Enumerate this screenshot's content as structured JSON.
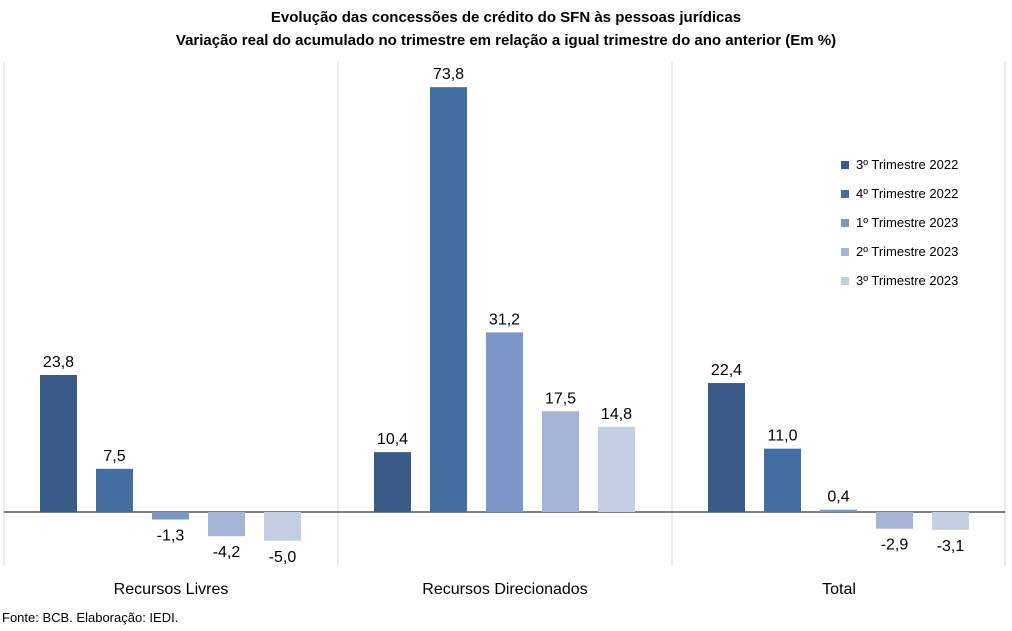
{
  "title": "Evolução das concessões de crédito do SFN às pessoas jurídicas",
  "subtitle": "Variação real do acumulado no trimestre em relação a igual trimestre do ano anterior (Em %)",
  "source": "Fonte: BCB. Elaboração: IEDI.",
  "chart_data": {
    "type": "bar",
    "title": "Evolução das concessões de crédito do SFN às pessoas jurídicas",
    "subtitle": "Variação real do acumulado no trimestre em relação a igual trimestre do ano anterior (Em %)",
    "categories": [
      "Recursos Livres",
      "Recursos Direcionados",
      "Total"
    ],
    "series": [
      {
        "name": "3º Trimestre 2022",
        "color": "#3a5b87",
        "values": [
          23.8,
          10.4,
          22.4
        ],
        "labels": [
          "23,8",
          "10,4",
          "22,4"
        ]
      },
      {
        "name": "4º Trimestre 2022",
        "color": "#436ea1",
        "values": [
          7.5,
          73.8,
          11.0
        ],
        "labels": [
          "7,5",
          "73,8",
          "11,0"
        ]
      },
      {
        "name": "1º Trimestre 2023",
        "color": "#7b97c7",
        "values": [
          -1.3,
          31.2,
          0.4
        ],
        "labels": [
          "-1,3",
          "31,2",
          "0,4"
        ]
      },
      {
        "name": "2º Trimestre 2023",
        "color": "#a3b4d5",
        "values": [
          -4.2,
          17.5,
          -2.9
        ],
        "labels": [
          "-4,2",
          "17,5",
          "-2,9"
        ]
      },
      {
        "name": "3º Trimestre 2023",
        "color": "#c5cfe3",
        "values": [
          -5.0,
          14.8,
          -3.1
        ],
        "labels": [
          "-5,0",
          "14,8",
          "-3,1"
        ]
      }
    ],
    "legend_position": "right",
    "grid": false,
    "xlabel": "",
    "ylabel": ""
  }
}
